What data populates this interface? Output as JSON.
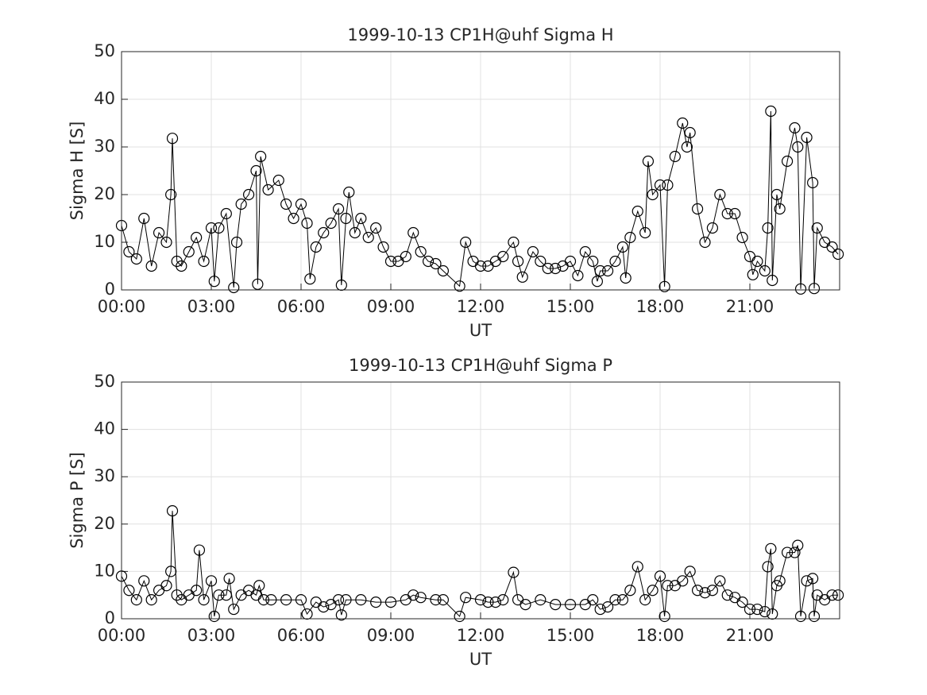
{
  "chart_data": [
    {
      "type": "line",
      "title": "1999-10-13  CP1H@uhf Sigma H",
      "xlabel": "UT",
      "ylabel": "Sigma H [S]",
      "color": "#000000",
      "marker": "circle",
      "grid": true,
      "xlim": [
        0,
        24
      ],
      "ylim": [
        0,
        50
      ],
      "xticks": [
        {
          "value": 0,
          "label": "00:00"
        },
        {
          "value": 3,
          "label": "03:00"
        },
        {
          "value": 6,
          "label": "06:00"
        },
        {
          "value": 9,
          "label": "09:00"
        },
        {
          "value": 12,
          "label": "12:00"
        },
        {
          "value": 15,
          "label": "15:00"
        },
        {
          "value": 18,
          "label": "18:00"
        },
        {
          "value": 21,
          "label": "21:00"
        }
      ],
      "yticks": [
        0,
        10,
        20,
        30,
        40,
        50
      ],
      "x": [
        0,
        0.25,
        0.5,
        0.75,
        1.0,
        1.25,
        1.5,
        1.65,
        1.7,
        1.85,
        2.0,
        2.25,
        2.5,
        2.75,
        3.0,
        3.1,
        3.25,
        3.5,
        3.75,
        3.85,
        4.0,
        4.25,
        4.5,
        4.55,
        4.65,
        4.9,
        5.25,
        5.5,
        5.75,
        6.0,
        6.2,
        6.3,
        6.5,
        6.75,
        7.0,
        7.25,
        7.35,
        7.5,
        7.6,
        7.8,
        8.0,
        8.25,
        8.5,
        8.75,
        9.0,
        9.25,
        9.5,
        9.75,
        10.0,
        10.25,
        10.5,
        10.75,
        11.3,
        11.5,
        11.75,
        12.0,
        12.25,
        12.5,
        12.75,
        13.1,
        13.25,
        13.4,
        13.75,
        14.0,
        14.25,
        14.5,
        14.75,
        15.0,
        15.25,
        15.5,
        15.75,
        15.9,
        16.0,
        16.25,
        16.5,
        16.75,
        16.85,
        17.0,
        17.25,
        17.5,
        17.6,
        17.75,
        18.0,
        18.15,
        18.25,
        18.5,
        18.75,
        18.9,
        19.0,
        19.25,
        19.5,
        19.75,
        20.0,
        20.25,
        20.5,
        20.75,
        21.0,
        21.1,
        21.25,
        21.5,
        21.6,
        21.7,
        21.75,
        21.9,
        22.0,
        22.25,
        22.5,
        22.6,
        22.7,
        22.9,
        23.1,
        23.15,
        23.25,
        23.5,
        23.75,
        23.95
      ],
      "values": [
        13.5,
        8,
        6.5,
        15,
        5,
        12,
        10,
        20,
        31.8,
        6,
        5,
        8,
        11,
        6,
        13,
        1.8,
        13,
        16,
        0.5,
        10,
        18,
        20,
        25,
        1.2,
        28,
        21,
        23,
        18,
        15,
        18,
        14,
        2.3,
        9,
        12,
        14,
        17,
        1,
        15,
        20.5,
        12,
        15,
        11,
        13,
        9,
        6,
        6,
        7,
        12,
        8,
        6,
        5.5,
        4,
        0.8,
        10,
        6,
        5,
        5,
        6,
        7,
        10,
        6,
        2.7,
        8,
        6,
        4.5,
        4.5,
        5,
        6,
        3,
        8,
        6,
        1.8,
        4,
        4,
        6,
        9,
        2.5,
        11,
        16.5,
        12,
        27,
        20,
        22,
        0.7,
        22,
        28,
        35,
        30,
        33,
        17,
        10,
        13,
        20,
        16,
        16,
        11,
        7,
        3.2,
        6,
        4,
        13,
        37.5,
        2,
        20,
        17,
        27,
        34,
        30,
        0.2,
        32,
        22.5,
        0.3,
        13,
        10,
        9,
        7.5
      ]
    },
    {
      "type": "line",
      "title": "1999-10-13  CP1H@uhf Sigma P",
      "xlabel": "UT",
      "ylabel": "Sigma P [S]",
      "color": "#000000",
      "marker": "circle",
      "grid": true,
      "xlim": [
        0,
        24
      ],
      "ylim": [
        0,
        50
      ],
      "xticks": [
        {
          "value": 0,
          "label": "00:00"
        },
        {
          "value": 3,
          "label": "03:00"
        },
        {
          "value": 6,
          "label": "06:00"
        },
        {
          "value": 9,
          "label": "09:00"
        },
        {
          "value": 12,
          "label": "12:00"
        },
        {
          "value": 15,
          "label": "15:00"
        },
        {
          "value": 18,
          "label": "18:00"
        },
        {
          "value": 21,
          "label": "21:00"
        }
      ],
      "yticks": [
        0,
        10,
        20,
        30,
        40,
        50
      ],
      "x": [
        0,
        0.25,
        0.5,
        0.75,
        1.0,
        1.25,
        1.5,
        1.65,
        1.7,
        1.85,
        2.0,
        2.25,
        2.5,
        2.6,
        2.75,
        3.0,
        3.1,
        3.25,
        3.5,
        3.6,
        3.75,
        4.0,
        4.25,
        4.5,
        4.6,
        4.75,
        5.0,
        5.5,
        6.0,
        6.2,
        6.5,
        6.75,
        7.0,
        7.25,
        7.35,
        7.5,
        8.0,
        8.5,
        9.0,
        9.5,
        9.75,
        10.0,
        10.5,
        10.75,
        11.3,
        11.5,
        12.0,
        12.25,
        12.5,
        12.75,
        13.1,
        13.25,
        13.5,
        14.0,
        14.5,
        15.0,
        15.5,
        15.75,
        16.0,
        16.25,
        16.5,
        16.75,
        17.0,
        17.25,
        17.5,
        17.75,
        18.0,
        18.15,
        18.25,
        18.5,
        18.75,
        19.0,
        19.25,
        19.5,
        19.75,
        20.0,
        20.25,
        20.5,
        20.75,
        21.0,
        21.25,
        21.5,
        21.6,
        21.7,
        21.75,
        21.9,
        22.0,
        22.25,
        22.5,
        22.6,
        22.7,
        22.9,
        23.1,
        23.15,
        23.25,
        23.5,
        23.75,
        23.95
      ],
      "values": [
        9,
        6,
        4,
        8,
        4,
        6,
        7,
        10,
        22.8,
        5,
        4,
        5,
        6,
        14.5,
        4,
        8,
        0.5,
        5,
        5,
        8.5,
        2,
        5,
        6,
        5,
        7,
        4,
        4,
        4,
        4,
        1,
        3.5,
        2.5,
        3,
        4,
        0.8,
        4,
        4,
        3.5,
        3.5,
        4,
        5,
        4.5,
        4,
        4,
        0.5,
        4.5,
        4,
        3.5,
        3.5,
        4,
        9.8,
        4,
        3,
        4,
        3,
        3,
        3,
        4,
        2,
        2.5,
        4,
        4,
        6,
        11,
        4,
        6,
        9,
        0.5,
        7,
        7,
        8,
        10,
        6,
        5.5,
        6,
        8,
        5,
        4.5,
        3.5,
        2,
        2,
        1.5,
        11,
        14.8,
        1,
        7,
        8,
        14,
        14,
        15.5,
        0.5,
        8,
        8.5,
        0.5,
        5,
        4,
        5,
        5
      ]
    }
  ]
}
